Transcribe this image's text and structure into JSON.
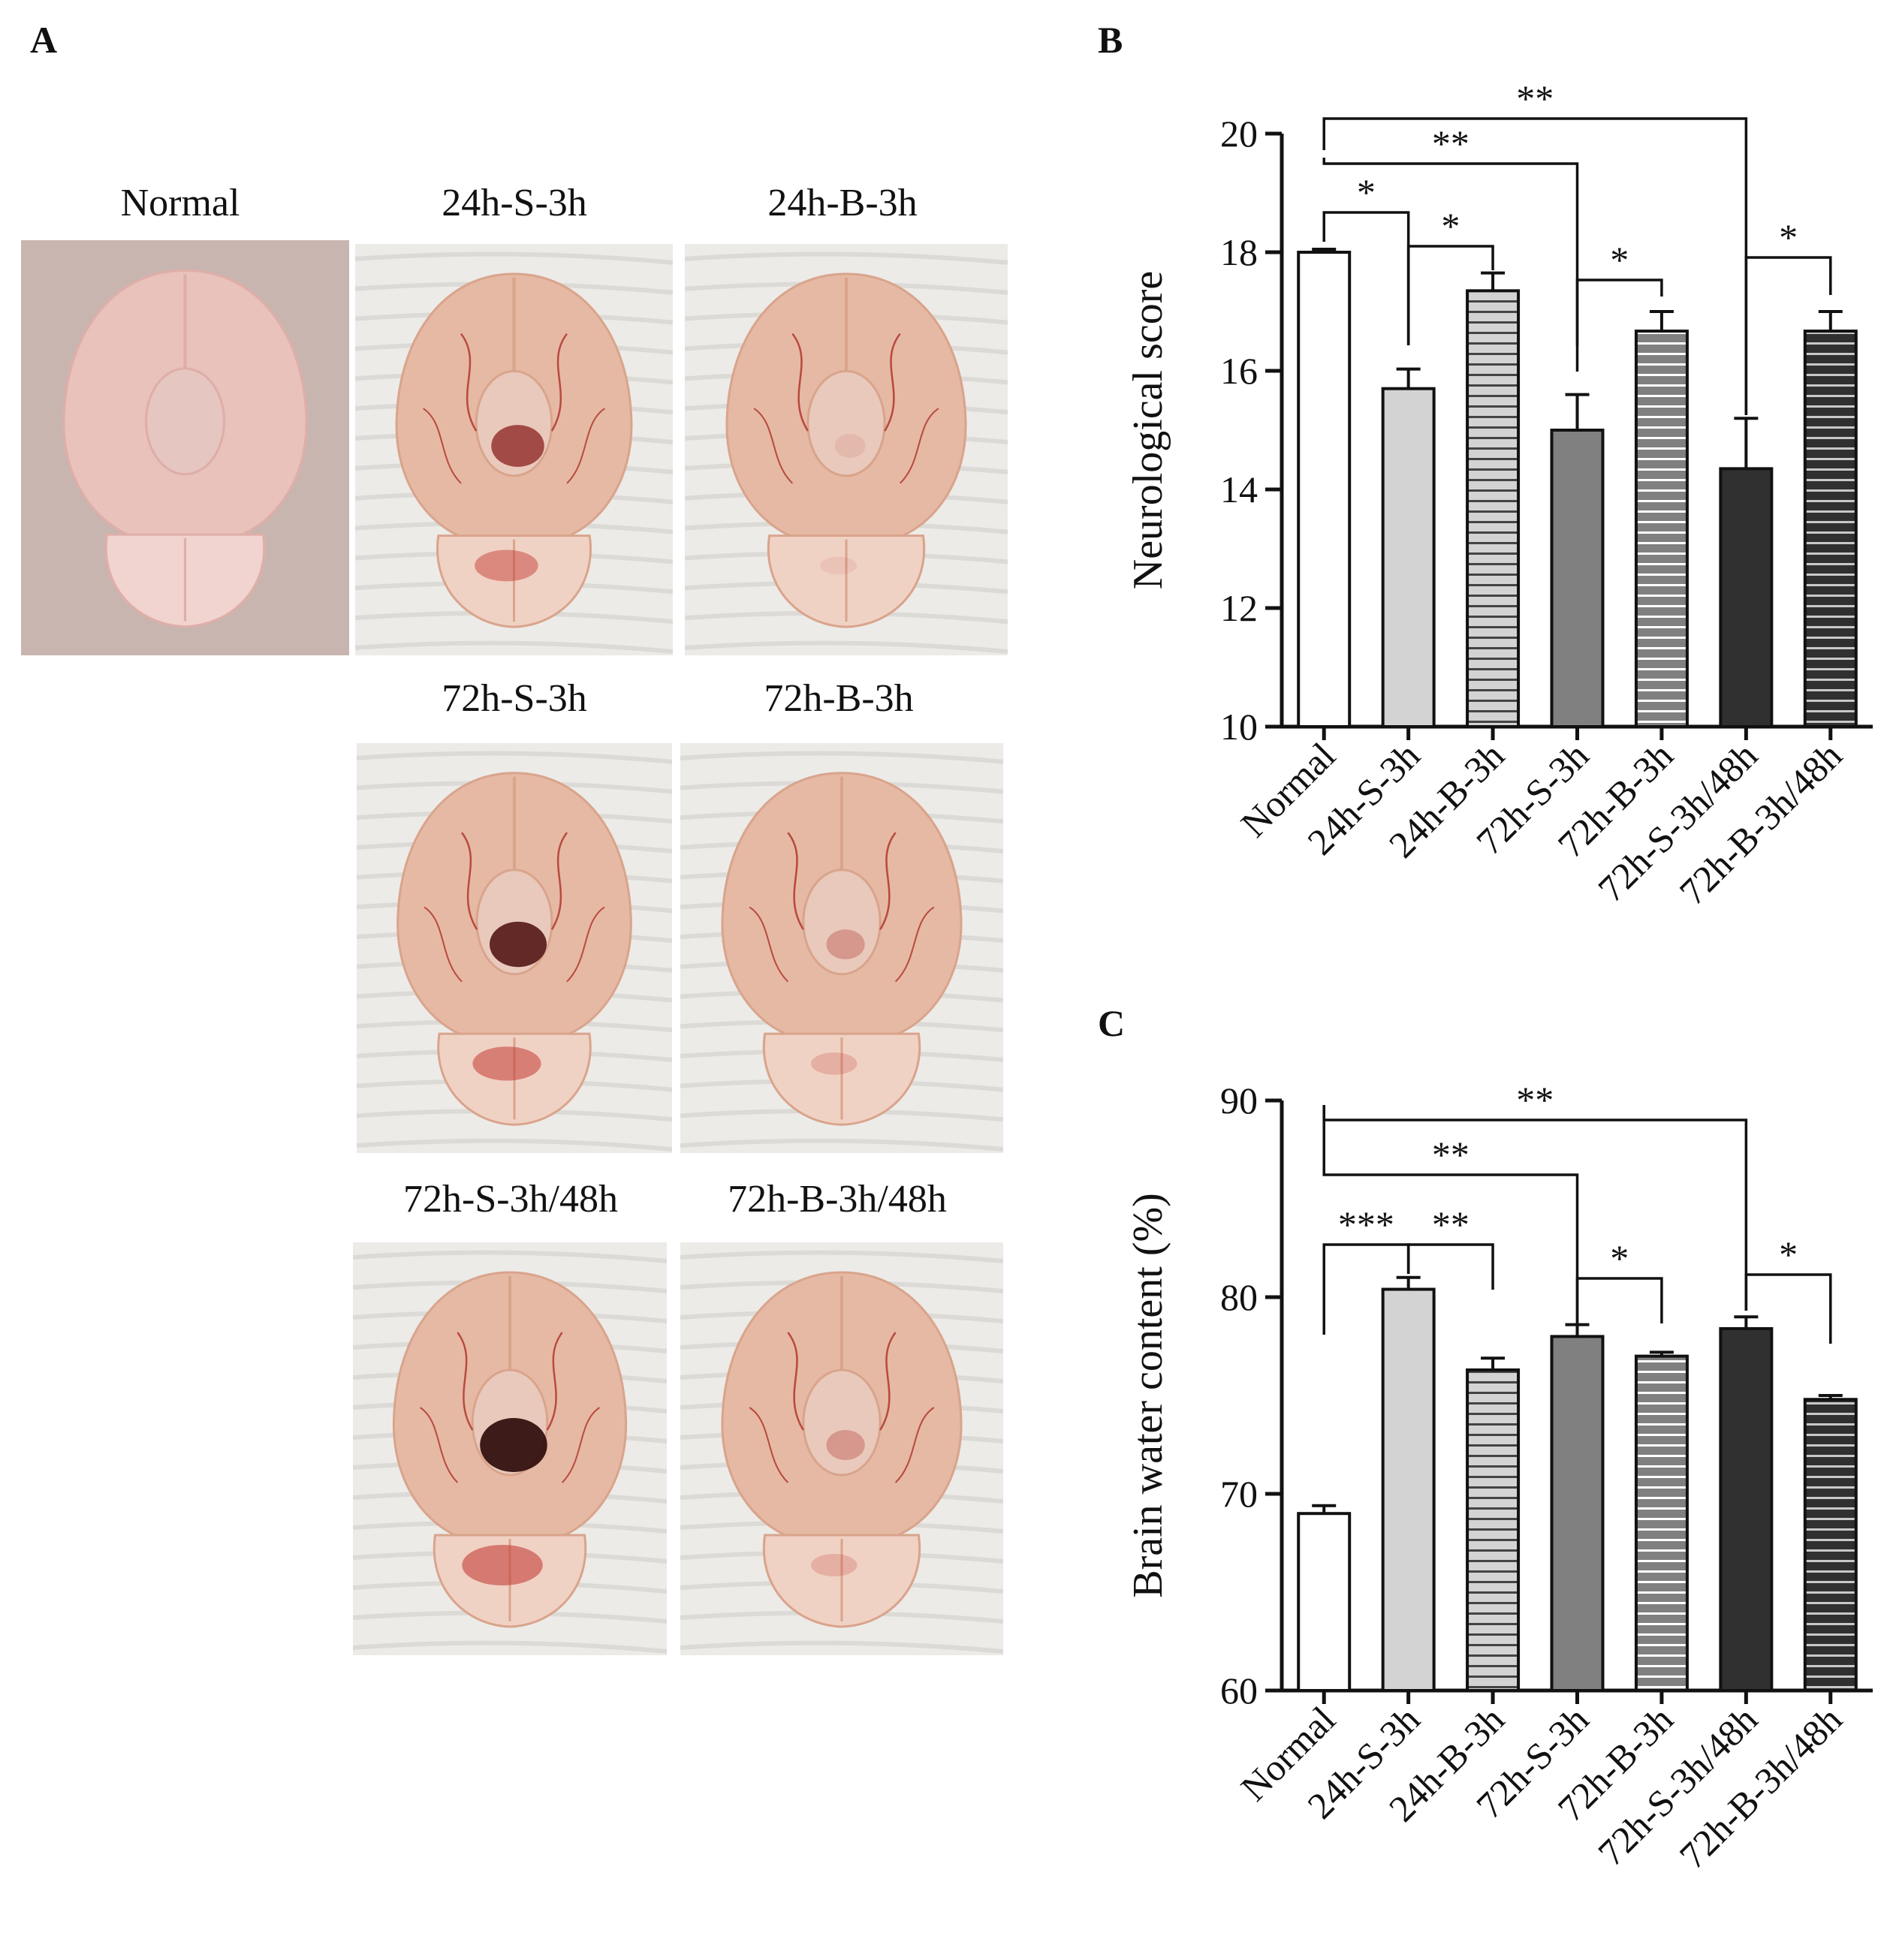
{
  "panels": {
    "a": {
      "letter": "A",
      "photos": [
        {
          "label": "Normal",
          "style": "normal"
        },
        {
          "label": "24h-S-3h",
          "style": "bleed-strong"
        },
        {
          "label": "24h-B-3h",
          "style": "mild"
        },
        {
          "label": "72h-S-3h",
          "style": "bleed-dark"
        },
        {
          "label": "72h-B-3h",
          "style": "bleed-light"
        },
        {
          "label": "72h-S-3h/48h",
          "style": "bleed-darkest"
        },
        {
          "label": "72h-B-3h/48h",
          "style": "bleed-light"
        }
      ]
    },
    "b": {
      "letter": "B"
    },
    "c": {
      "letter": "C"
    }
  },
  "colors": {
    "bar_fills": [
      "#ffffff",
      "#d3d3d3",
      "#d3d3d3",
      "#808080",
      "#808080",
      "#303030",
      "#303030"
    ],
    "stripe_colors": [
      null,
      null,
      "#444444",
      null,
      "#ffffff",
      null,
      "#c8c8c8"
    ],
    "axis": "#111111"
  },
  "chart_data": [
    {
      "type": "bar",
      "id": "neurological",
      "ylabel": "Neurological score",
      "categories": [
        "Normal",
        "24h-S-3h",
        "24h-B-3h",
        "72h-S-3h",
        "72h-B-3h",
        "72h-S-3h/48h",
        "72h-B-3h/48h"
      ],
      "values": [
        18.0,
        15.7,
        17.35,
        15.0,
        16.67,
        14.35,
        16.67
      ],
      "errors": [
        0.05,
        0.33,
        0.3,
        0.6,
        0.33,
        0.85,
        0.33
      ],
      "ylim": [
        10,
        20
      ],
      "yticks": [
        10,
        12,
        14,
        16,
        18,
        20
      ],
      "significance": [
        {
          "from": 0,
          "to": 1,
          "label": "*"
        },
        {
          "from": 1,
          "to": 2,
          "label": "*"
        },
        {
          "from": 0,
          "to": 3,
          "label": "**"
        },
        {
          "from": 3,
          "to": 4,
          "label": "*"
        },
        {
          "from": 0,
          "to": 5,
          "label": "**"
        },
        {
          "from": 5,
          "to": 6,
          "label": "*"
        }
      ]
    },
    {
      "type": "bar",
      "id": "water",
      "ylabel": "Brain water content (%)",
      "categories": [
        "Normal",
        "24h-S-3h",
        "24h-B-3h",
        "72h-S-3h",
        "72h-B-3h",
        "72h-S-3h/48h",
        "72h-B-3h/48h"
      ],
      "values": [
        69.0,
        80.4,
        76.3,
        78.0,
        77.0,
        78.4,
        74.8
      ],
      "errors": [
        0.4,
        0.6,
        0.6,
        0.6,
        0.2,
        0.6,
        0.2
      ],
      "ylim": [
        60,
        90
      ],
      "yticks": [
        60,
        70,
        80,
        90
      ],
      "significance": [
        {
          "from": 0,
          "to": 1,
          "label": "***"
        },
        {
          "from": 1,
          "to": 2,
          "label": "**"
        },
        {
          "from": 0,
          "to": 3,
          "label": "**"
        },
        {
          "from": 3,
          "to": 4,
          "label": "*"
        },
        {
          "from": 0,
          "to": 5,
          "label": "**"
        },
        {
          "from": 5,
          "to": 6,
          "label": "*"
        }
      ]
    }
  ]
}
